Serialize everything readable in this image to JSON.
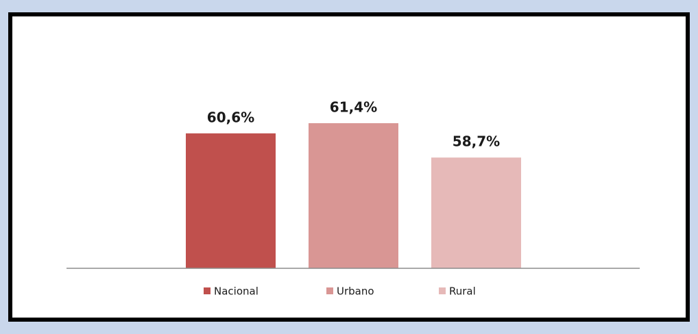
{
  "chart_data": {
    "type": "bar",
    "categories": [
      "Nacional",
      "Urbano",
      "Rural"
    ],
    "values": [
      60.6,
      61.4,
      58.7
    ],
    "value_labels": [
      "60,6%",
      "61,4%",
      "58,7%"
    ],
    "colors": [
      "#c0504d",
      "#d99694",
      "#e6b9b8"
    ],
    "ylim": [
      50,
      65
    ]
  }
}
